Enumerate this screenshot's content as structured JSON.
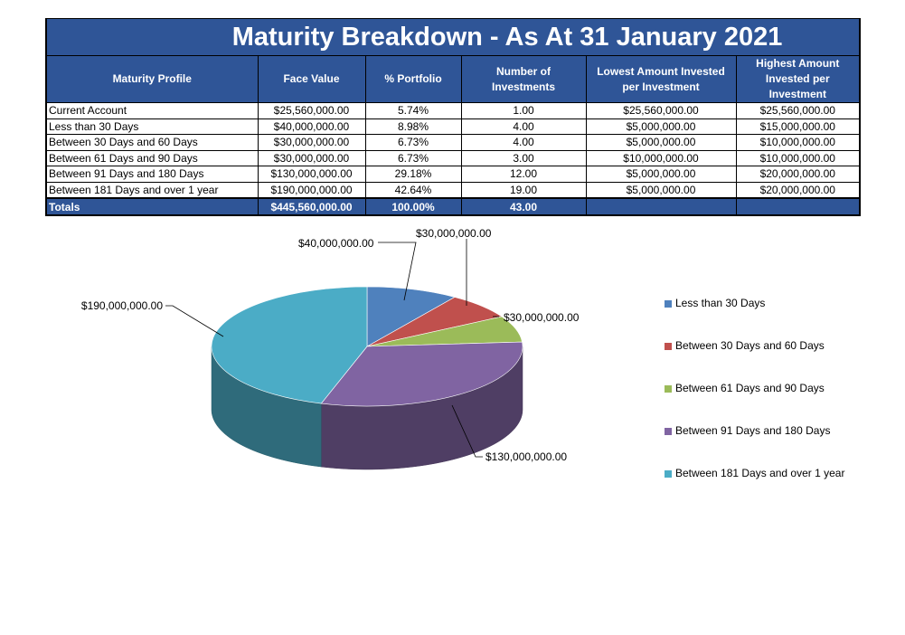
{
  "report": {
    "title": "Maturity Breakdown - As At 31 January 2021",
    "headers": [
      "Maturity Profile",
      "Face Value",
      "% Portfolio",
      "Number of Investments",
      "Lowest Amount Invested per Investment",
      "Highest Amount Invested per Investment"
    ],
    "rows": [
      [
        "Current Account",
        "$25,560,000.00",
        "5.74%",
        "1.00",
        "$25,560,000.00",
        "$25,560,000.00"
      ],
      [
        "Less than 30 Days",
        "$40,000,000.00",
        "8.98%",
        "4.00",
        "$5,000,000.00",
        "$15,000,000.00"
      ],
      [
        "Between 30 Days and 60 Days",
        "$30,000,000.00",
        "6.73%",
        "4.00",
        "$5,000,000.00",
        "$10,000,000.00"
      ],
      [
        "Between 61 Days and 90 Days",
        "$30,000,000.00",
        "6.73%",
        "3.00",
        "$10,000,000.00",
        "$10,000,000.00"
      ],
      [
        "Between 91 Days and 180 Days",
        "$130,000,000.00",
        "29.18%",
        "12.00",
        "$5,000,000.00",
        "$20,000,000.00"
      ],
      [
        "Between 181 Days and over 1 year",
        "$190,000,000.00",
        "42.64%",
        "19.00",
        "$5,000,000.00",
        "$20,000,000.00"
      ]
    ],
    "totals": [
      "Totals",
      "$445,560,000.00",
      "100.00%",
      "43.00",
      "",
      ""
    ]
  },
  "chart_data": {
    "type": "pie",
    "title": "",
    "categories": [
      "Less than 30 Days",
      "Between 30 Days and 60 Days",
      "Between 61 Days and 90 Days",
      "Between 91 Days and 180 Days",
      "Between 181 Days and over 1 year"
    ],
    "values": [
      40000000,
      30000000,
      30000000,
      130000000,
      190000000
    ],
    "data_labels": [
      "$40,000,000.00",
      "$30,000,000.00",
      "$30,000,000.00",
      "$130,000,000.00",
      "$190,000,000.00"
    ],
    "colors": [
      "#4F81BD",
      "#C0504D",
      "#9BBB59",
      "#8064A2",
      "#4BACC6"
    ],
    "legend_position": "right",
    "style": "3d"
  }
}
